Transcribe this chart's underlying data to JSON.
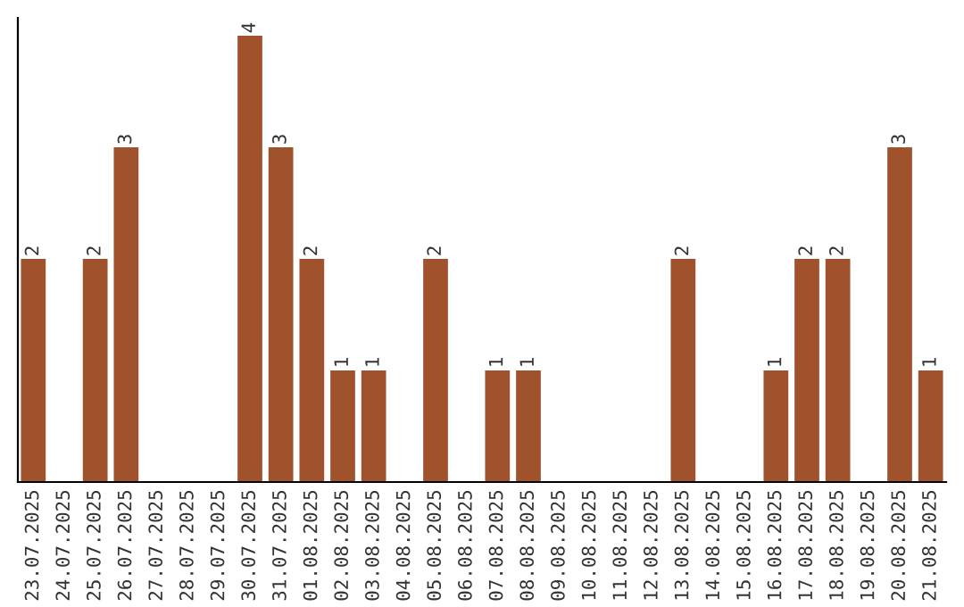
{
  "chart_data": {
    "type": "bar",
    "categories": [
      "23.07.2025",
      "24.07.2025",
      "25.07.2025",
      "26.07.2025",
      "27.07.2025",
      "28.07.2025",
      "29.07.2025",
      "30.07.2025",
      "31.07.2025",
      "01.08.2025",
      "02.08.2025",
      "03.08.2025",
      "04.08.2025",
      "05.08.2025",
      "06.08.2025",
      "07.08.2025",
      "08.08.2025",
      "09.08.2025",
      "10.08.2025",
      "11.08.2025",
      "12.08.2025",
      "13.08.2025",
      "14.08.2025",
      "15.08.2025",
      "16.08.2025",
      "17.08.2025",
      "18.08.2025",
      "19.08.2025",
      "20.08.2025",
      "21.08.2025"
    ],
    "values": [
      2,
      0,
      2,
      3,
      0,
      0,
      0,
      4,
      3,
      2,
      1,
      1,
      0,
      2,
      0,
      1,
      1,
      0,
      0,
      0,
      0,
      2,
      0,
      0,
      1,
      2,
      2,
      0,
      3,
      1
    ],
    "value_labels": [
      "2",
      null,
      "2",
      "3",
      null,
      null,
      null,
      "4",
      "3",
      "2",
      "1",
      "1",
      null,
      "2",
      null,
      "1",
      "1",
      null,
      null,
      null,
      null,
      "2",
      null,
      null,
      "1",
      "2",
      "2",
      null,
      "3",
      "1"
    ],
    "color": "#a0522d",
    "tick_labels": "x",
    "grid": false
  }
}
